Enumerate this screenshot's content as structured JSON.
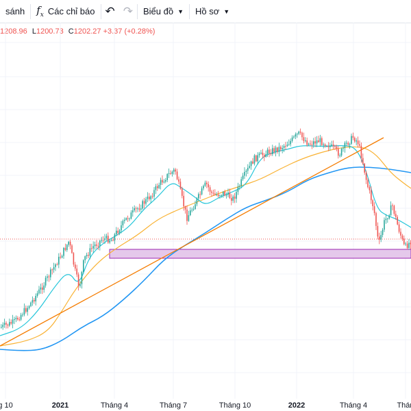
{
  "toolbar": {
    "compare_label": "sánh",
    "indicators_label": "Các chỉ báo",
    "indicators_icon": "fx-icon",
    "undo_icon": "undo-icon",
    "redo_icon": "redo-icon",
    "chart_type_label": "Biểu đồ",
    "profile_label": "Hồ sơ"
  },
  "ohlc_legend": {
    "high": "1208.96",
    "low_label": "L",
    "low": "1200.73",
    "close_label": "C",
    "close": "1202.27",
    "change": "+3.37 (+0.28%)"
  },
  "colors": {
    "up": "#26a69a",
    "down": "#ef5350",
    "ma_fast": "#26c6da",
    "ma_mid": "#f9b233",
    "ma_slow": "#2196f3",
    "trendline": "#f57c00",
    "zone_fill": "#e1bee7",
    "zone_border": "#9c27b0",
    "price_line": "#ef5350"
  },
  "chart_data": {
    "type": "candlestick",
    "x_tick_labels": [
      "g 10",
      "2021",
      "Tháng 4",
      "Tháng 7",
      "Tháng 10",
      "2022",
      "Tháng 4",
      "Thán"
    ],
    "bold_ticks": [
      "2021",
      "2022"
    ],
    "last_close": 1202.27,
    "grid": true,
    "legend": "top-left"
  }
}
